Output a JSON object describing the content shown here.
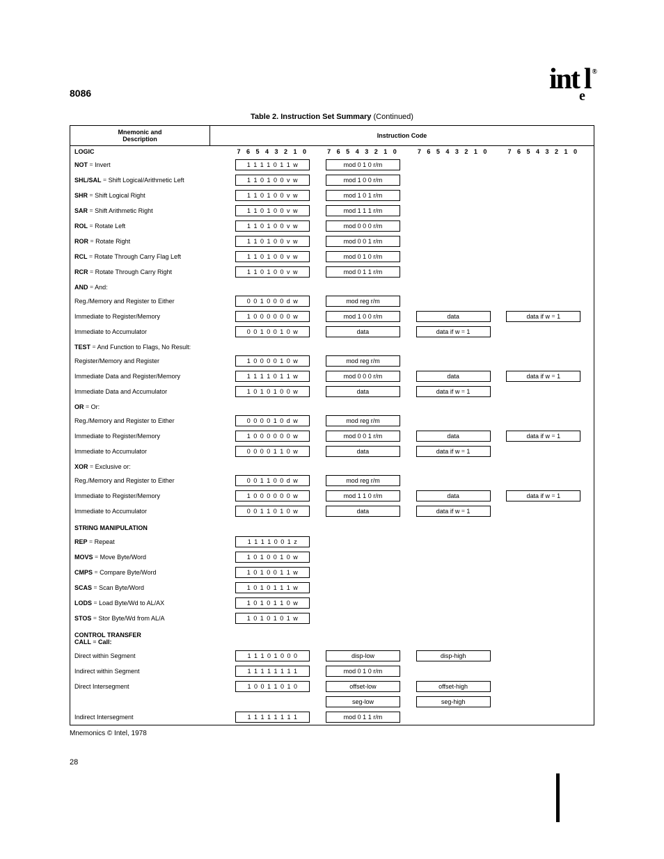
{
  "header": {
    "chip": "8086",
    "logo_main": "int",
    "logo_sub": "e",
    "logo_end": "l",
    "logo_reg": "®"
  },
  "caption": {
    "bold": "Table 2. Instruction Set Summary ",
    "rest": "(Continued)"
  },
  "table_head": {
    "left": "Mnemonic and\nDescription",
    "right": "Instruction Code"
  },
  "bits": "7 6 5 4 3 2 1 0",
  "sections": {
    "logic": "LOGIC",
    "and": "AND",
    "and_rest": "And:",
    "test": "TEST",
    "test_rest": "And Function to Flags, No Result:",
    "or": "OR",
    "or_rest": "Or:",
    "xor": "XOR",
    "xor_rest": "Exclusive or:",
    "string": "STRING MANIPULATION",
    "ctrl": "CONTROL TRANSFER",
    "call": "CALL",
    "call_rest": "Call:"
  },
  "rows": {
    "not": {
      "m": "NOT",
      "d": "Invert",
      "c": [
        "1 1 1 1 0 1 1 w",
        "mod 0 1 0 r/m"
      ]
    },
    "shl": {
      "m": "SHL/SAL",
      "d": "Shift Logical/Arithmetic Left",
      "c": [
        "1 1 0 1 0 0 v w",
        "mod 1 0 0 r/m"
      ]
    },
    "shr": {
      "m": "SHR",
      "d": "Shift Logical Right",
      "c": [
        "1 1 0 1 0 0 v w",
        "mod 1 0 1 r/m"
      ]
    },
    "sar": {
      "m": "SAR",
      "d": "Shift Arithmetic Right",
      "c": [
        "1 1 0 1 0 0 v w",
        "mod 1 1 1 r/m"
      ]
    },
    "rol": {
      "m": "ROL",
      "d": "Rotate Left",
      "c": [
        "1 1 0 1 0 0 v w",
        "mod 0 0 0 r/m"
      ]
    },
    "ror": {
      "m": "ROR",
      "d": "Rotate Right",
      "c": [
        "1 1 0 1 0 0 v w",
        "mod 0 0 1 r/m"
      ]
    },
    "rcl": {
      "m": "RCL",
      "d": "Rotate Through Carry Flag Left",
      "c": [
        "1 1 0 1 0 0 v w",
        "mod 0 1 0 r/m"
      ]
    },
    "rcr": {
      "m": "RCR",
      "d": "Rotate Through Carry Right",
      "c": [
        "1 1 0 1 0 0 v w",
        "mod 0 1 1 r/m"
      ]
    },
    "and1": {
      "d": "Reg./Memory and Register to Either",
      "c": [
        "0 0 1 0 0 0 d w",
        "mod reg r/m"
      ]
    },
    "and2": {
      "d": "Immediate to Register/Memory",
      "c": [
        "1 0 0 0 0 0 0 w",
        "mod 1 0 0 r/m",
        "data",
        "data if w = 1"
      ]
    },
    "and3": {
      "d": "Immediate to Accumulator",
      "c": [
        "0 0 1 0 0 1 0 w",
        "data",
        "data if w = 1"
      ]
    },
    "test1": {
      "d": "Register/Memory and Register",
      "c": [
        "1 0 0 0 0 1 0 w",
        "mod reg r/m"
      ]
    },
    "test2": {
      "d": "Immediate Data and Register/Memory",
      "c": [
        "1 1 1 1 0 1 1 w",
        "mod 0 0 0 r/m",
        "data",
        "data if w = 1"
      ]
    },
    "test3": {
      "d": "Immediate Data and Accumulator",
      "c": [
        "1 0 1 0 1 0 0 w",
        "data",
        "data if w = 1"
      ]
    },
    "or1": {
      "d": "Reg./Memory and Register to Either",
      "c": [
        "0 0 0 0 1 0 d w",
        "mod reg r/m"
      ]
    },
    "or2": {
      "d": "Immediate to Register/Memory",
      "c": [
        "1 0 0 0 0 0 0 w",
        "mod 0 0 1 r/m",
        "data",
        "data if w = 1"
      ]
    },
    "or3": {
      "d": "Immediate to Accumulator",
      "c": [
        "0 0 0 0 1 1 0 w",
        "data",
        "data if w = 1"
      ]
    },
    "xor1": {
      "d": "Reg./Memory and Register to Either",
      "c": [
        "0 0 1 1 0 0 d w",
        "mod reg r/m"
      ]
    },
    "xor2": {
      "d": "Immediate to Register/Memory",
      "c": [
        "1 0 0 0 0 0 0 w",
        "mod 1 1 0 r/m",
        "data",
        "data if w = 1"
      ]
    },
    "xor3": {
      "d": "Immediate to Accumulator",
      "c": [
        "0 0 1 1 0 1 0 w",
        "data",
        "data if w = 1"
      ]
    },
    "rep": {
      "m": "REP",
      "d": "Repeat",
      "c": [
        "1 1 1 1 0 0 1 z"
      ]
    },
    "movs": {
      "m": "MOVS",
      "d": "Move Byte/Word",
      "c": [
        "1 0 1 0 0 1 0 w"
      ]
    },
    "cmps": {
      "m": "CMPS",
      "d": "Compare Byte/Word",
      "c": [
        "1 0 1 0 0 1 1 w"
      ]
    },
    "scas": {
      "m": "SCAS",
      "d": "Scan Byte/Word",
      "c": [
        "1 0 1 0 1 1 1 w"
      ]
    },
    "lods": {
      "m": "LODS",
      "d": "Load Byte/Wd to AL/AX",
      "c": [
        "1 0 1 0 1 1 0 w"
      ]
    },
    "stos": {
      "m": "STOS",
      "d": "Stor Byte/Wd from AL/A",
      "c": [
        "1 0 1 0 1 0 1 w"
      ]
    },
    "call1": {
      "d": "Direct within Segment",
      "c": [
        "1 1 1 0 1 0 0 0",
        "disp-low",
        "disp-high"
      ]
    },
    "call2": {
      "d": "Indirect within Segment",
      "c": [
        "1 1 1 1 1 1 1 1",
        "mod 0 1 0 r/m"
      ]
    },
    "call3": {
      "d": "Direct Intersegment",
      "c": [
        "1 0 0 1 1 0 1 0",
        "offset-low",
        "offset-high"
      ]
    },
    "call3b": {
      "d": "",
      "c": [
        "",
        "seg-low",
        "seg-high"
      ]
    },
    "call4": {
      "d": "Indirect Intersegment",
      "c": [
        "1 1 1 1 1 1 1 1",
        "mod 0 1 1 r/m"
      ]
    }
  },
  "footer": {
    "note": "Mnemonics © Intel, 1978",
    "page": "28"
  },
  "eq": "="
}
